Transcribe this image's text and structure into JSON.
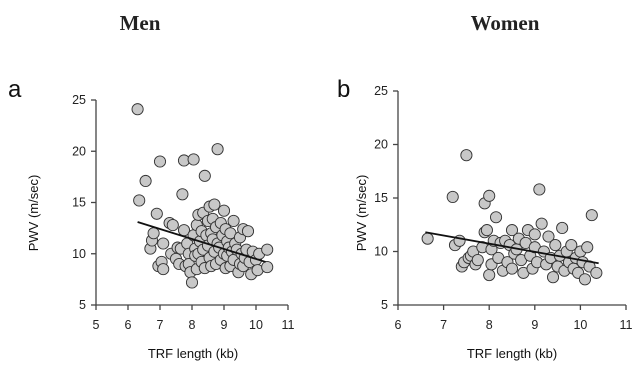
{
  "panels": [
    {
      "header": "Men",
      "label": "a",
      "xlabel": "TRF length (kb)",
      "ylabel": "PWV (m/sec)",
      "xticks": [
        5,
        6,
        7,
        8,
        9,
        10,
        11
      ],
      "yticks": [
        5,
        10,
        15,
        20,
        25
      ]
    },
    {
      "header": "Women",
      "label": "b",
      "xlabel": "TRF length (kb)",
      "ylabel": "PWV (m/sec)",
      "xticks": [
        6,
        7,
        8,
        9,
        10,
        11
      ],
      "yticks": [
        5,
        10,
        15,
        20,
        25
      ]
    }
  ],
  "chart_data": [
    {
      "type": "scatter",
      "title": "Men",
      "panel_label": "a",
      "xlabel": "TRF length (kb)",
      "ylabel": "PWV (m/sec)",
      "xlim": [
        5,
        11
      ],
      "ylim": [
        5,
        25
      ],
      "grid": false,
      "trendline": {
        "x": [
          6.3,
          10.3
        ],
        "y": [
          13.1,
          9.2
        ]
      },
      "points": [
        [
          6.3,
          24.1
        ],
        [
          6.35,
          15.2
        ],
        [
          6.55,
          17.1
        ],
        [
          6.7,
          10.5
        ],
        [
          6.75,
          11.3
        ],
        [
          6.8,
          12.0
        ],
        [
          6.9,
          13.9
        ],
        [
          6.95,
          8.8
        ],
        [
          7.0,
          19.0
        ],
        [
          7.05,
          9.2
        ],
        [
          7.1,
          11.0
        ],
        [
          7.1,
          8.5
        ],
        [
          7.3,
          13.0
        ],
        [
          7.35,
          10.0
        ],
        [
          7.4,
          12.8
        ],
        [
          7.5,
          9.5
        ],
        [
          7.55,
          10.6
        ],
        [
          7.6,
          9.0
        ],
        [
          7.65,
          10.5
        ],
        [
          7.7,
          15.8
        ],
        [
          7.75,
          19.1
        ],
        [
          7.75,
          12.3
        ],
        [
          7.8,
          8.8
        ],
        [
          7.85,
          11.0
        ],
        [
          7.9,
          10.0
        ],
        [
          7.9,
          9.0
        ],
        [
          7.95,
          8.2
        ],
        [
          8.0,
          7.2
        ],
        [
          8.05,
          19.2
        ],
        [
          8.05,
          11.8
        ],
        [
          8.1,
          10.5
        ],
        [
          8.1,
          9.8
        ],
        [
          8.15,
          12.8
        ],
        [
          8.15,
          8.5
        ],
        [
          8.2,
          10.0
        ],
        [
          8.2,
          13.8
        ],
        [
          8.25,
          11.2
        ],
        [
          8.3,
          9.2
        ],
        [
          8.3,
          12.2
        ],
        [
          8.35,
          14.0
        ],
        [
          8.35,
          10.4
        ],
        [
          8.4,
          8.6
        ],
        [
          8.4,
          17.6
        ],
        [
          8.45,
          11.8
        ],
        [
          8.5,
          13.2
        ],
        [
          8.5,
          10.8
        ],
        [
          8.55,
          9.6
        ],
        [
          8.55,
          14.6
        ],
        [
          8.6,
          12.0
        ],
        [
          8.6,
          8.8
        ],
        [
          8.65,
          11.4
        ],
        [
          8.65,
          13.4
        ],
        [
          8.7,
          10.2
        ],
        [
          8.7,
          14.8
        ],
        [
          8.75,
          9.0
        ],
        [
          8.75,
          12.6
        ],
        [
          8.8,
          20.2
        ],
        [
          8.8,
          11.0
        ],
        [
          8.85,
          10.6
        ],
        [
          8.9,
          13.0
        ],
        [
          8.9,
          9.4
        ],
        [
          8.95,
          11.8
        ],
        [
          9.0,
          10.0
        ],
        [
          9.0,
          14.2
        ],
        [
          9.05,
          12.4
        ],
        [
          9.05,
          8.6
        ],
        [
          9.1,
          11.2
        ],
        [
          9.1,
          9.8
        ],
        [
          9.15,
          10.6
        ],
        [
          9.2,
          12.0
        ],
        [
          9.2,
          8.8
        ],
        [
          9.25,
          10.2
        ],
        [
          9.3,
          13.2
        ],
        [
          9.3,
          9.4
        ],
        [
          9.35,
          11.0
        ],
        [
          9.4,
          10.4
        ],
        [
          9.45,
          8.2
        ],
        [
          9.5,
          11.6
        ],
        [
          9.5,
          9.0
        ],
        [
          9.55,
          10.0
        ],
        [
          9.6,
          12.4
        ],
        [
          9.6,
          8.8
        ],
        [
          9.65,
          9.6
        ],
        [
          9.7,
          10.4
        ],
        [
          9.75,
          12.2
        ],
        [
          9.8,
          9.2
        ],
        [
          9.85,
          8.0
        ],
        [
          9.9,
          10.2
        ],
        [
          10.0,
          9.4
        ],
        [
          10.05,
          8.4
        ],
        [
          10.1,
          10.0
        ],
        [
          10.35,
          10.4
        ],
        [
          10.35,
          8.7
        ]
      ]
    },
    {
      "type": "scatter",
      "title": "Women",
      "panel_label": "b",
      "xlabel": "TRF length (kb)",
      "ylabel": "PWV (m/sec)",
      "xlim": [
        6,
        11
      ],
      "ylim": [
        5,
        25
      ],
      "grid": false,
      "trendline": {
        "x": [
          6.6,
          10.4
        ],
        "y": [
          11.8,
          8.9
        ]
      },
      "points": [
        [
          6.65,
          11.2
        ],
        [
          7.2,
          15.1
        ],
        [
          7.25,
          10.6
        ],
        [
          7.35,
          11.0
        ],
        [
          7.4,
          8.6
        ],
        [
          7.45,
          9.0
        ],
        [
          7.5,
          19.0
        ],
        [
          7.55,
          9.4
        ],
        [
          7.6,
          9.6
        ],
        [
          7.65,
          10.0
        ],
        [
          7.7,
          8.8
        ],
        [
          7.75,
          9.2
        ],
        [
          7.85,
          10.4
        ],
        [
          7.9,
          11.8
        ],
        [
          7.9,
          14.5
        ],
        [
          7.95,
          12.0
        ],
        [
          8.0,
          7.8
        ],
        [
          8.0,
          15.2
        ],
        [
          8.05,
          10.2
        ],
        [
          8.05,
          8.8
        ],
        [
          8.1,
          11.0
        ],
        [
          8.15,
          13.2
        ],
        [
          8.2,
          9.4
        ],
        [
          8.25,
          10.8
        ],
        [
          8.3,
          8.2
        ],
        [
          8.35,
          11.0
        ],
        [
          8.4,
          9.0
        ],
        [
          8.45,
          10.6
        ],
        [
          8.5,
          12.0
        ],
        [
          8.5,
          8.4
        ],
        [
          8.55,
          9.8
        ],
        [
          8.6,
          10.2
        ],
        [
          8.65,
          11.2
        ],
        [
          8.7,
          9.2
        ],
        [
          8.75,
          8.0
        ],
        [
          8.8,
          10.8
        ],
        [
          8.85,
          12.0
        ],
        [
          8.9,
          9.6
        ],
        [
          8.95,
          8.4
        ],
        [
          9.0,
          10.4
        ],
        [
          9.0,
          11.6
        ],
        [
          9.05,
          9.0
        ],
        [
          9.1,
          15.8
        ],
        [
          9.15,
          12.6
        ],
        [
          9.2,
          10.0
        ],
        [
          9.25,
          8.8
        ],
        [
          9.3,
          11.4
        ],
        [
          9.35,
          9.4
        ],
        [
          9.4,
          7.6
        ],
        [
          9.45,
          10.6
        ],
        [
          9.5,
          8.6
        ],
        [
          9.55,
          9.6
        ],
        [
          9.6,
          12.2
        ],
        [
          9.65,
          8.2
        ],
        [
          9.7,
          10.0
        ],
        [
          9.75,
          9.0
        ],
        [
          9.8,
          10.6
        ],
        [
          9.85,
          8.4
        ],
        [
          9.9,
          9.4
        ],
        [
          9.95,
          8.0
        ],
        [
          10.0,
          10.0
        ],
        [
          10.05,
          9.0
        ],
        [
          10.1,
          7.4
        ],
        [
          10.15,
          10.4
        ],
        [
          10.2,
          8.6
        ],
        [
          10.25,
          13.4
        ],
        [
          10.35,
          8.0
        ]
      ]
    }
  ]
}
